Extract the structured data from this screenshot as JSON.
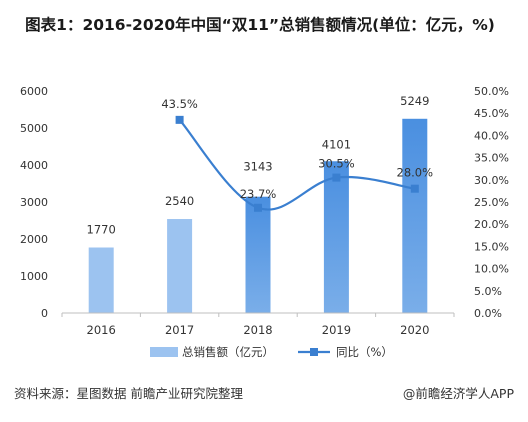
{
  "title": "图表1：2016-2020年中国“双11”总销售额情况(单位：亿元，%)",
  "source": "资料来源：星图数据 前瞻产业研究院整理",
  "credit": "@前瞻经济学人APP",
  "colors": {
    "bar_light": "#9cc3f0",
    "bar_dark": "#4a8fe0",
    "line": "#3a7fd0",
    "axis": "#bfbfbf",
    "text": "#333333"
  },
  "chart_data": {
    "type": "bar",
    "categories": [
      "2016",
      "2017",
      "2018",
      "2019",
      "2020"
    ],
    "series": [
      {
        "name": "总销售额（亿元）",
        "type": "bar",
        "axis": "left",
        "values": [
          1770,
          2540,
          3143,
          4101,
          5249
        ],
        "labels": [
          "1770",
          "2540",
          "3143",
          "4101",
          "5249"
        ]
      },
      {
        "name": "同比（%）",
        "type": "line",
        "axis": "right",
        "values": [
          null,
          43.5,
          23.7,
          30.5,
          28.0
        ],
        "labels": [
          "",
          "43.5%",
          "23.7%",
          "30.5%",
          "28.0%"
        ]
      }
    ],
    "y_left": {
      "range": [
        0,
        6000
      ],
      "ticks": [
        0,
        1000,
        2000,
        3000,
        4000,
        5000,
        6000
      ],
      "tick_labels": [
        "0",
        "1000",
        "2000",
        "3000",
        "4000",
        "5000",
        "6000"
      ]
    },
    "y_right": {
      "range": [
        0,
        50
      ],
      "ticks": [
        0,
        5,
        10,
        15,
        20,
        25,
        30,
        35,
        40,
        45,
        50
      ],
      "tick_labels": [
        "0.0%",
        "5.0%",
        "10.0%",
        "15.0%",
        "20.0%",
        "25.0%",
        "30.0%",
        "35.0%",
        "40.0%",
        "45.0%",
        "50.0%"
      ]
    },
    "grid": false,
    "legend_position": "bottom"
  }
}
